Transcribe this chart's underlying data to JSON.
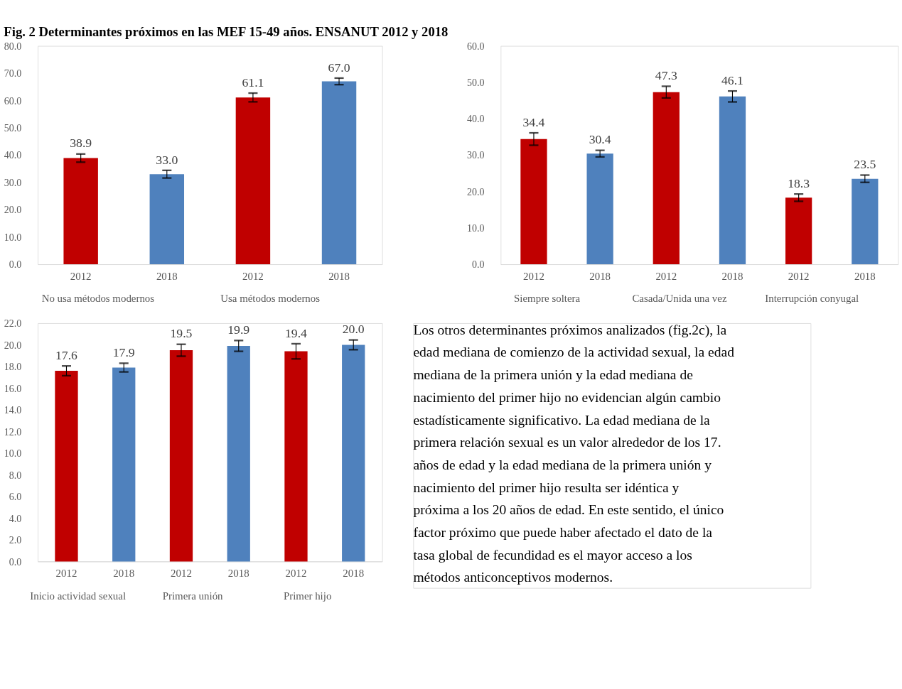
{
  "chart_data": [
    {
      "type": "bar",
      "title": "Fig. 2 Determinantes próximos en las MEF 15-49 años. ENSANUT 2012 y 2018",
      "categories": [
        "2012",
        "2018",
        "2012",
        "2018"
      ],
      "annotations": [
        "No usa métodos modernos",
        "Usa métodos modernos"
      ],
      "values": [
        38.9,
        33.0,
        61.1,
        67.0
      ],
      "value_labels": [
        "38.9",
        "33.0",
        "61.1",
        "67.0"
      ],
      "colors": [
        "#c00000",
        "#4f81bd",
        "#c00000",
        "#4f81bd"
      ],
      "errors": [
        1.5,
        1.4,
        1.6,
        1.2
      ],
      "ylim": [
        0,
        80
      ],
      "yticks": [
        {
          "value": 0,
          "label": "0.0"
        },
        {
          "value": 10,
          "label": "10.0"
        },
        {
          "value": 20,
          "label": "20.0"
        },
        {
          "value": 30,
          "label": "30.0"
        },
        {
          "value": 40,
          "label": "40.0"
        },
        {
          "value": 50,
          "label": "50.0"
        },
        {
          "value": 60,
          "label": "60.0"
        },
        {
          "value": 70,
          "label": "70.0"
        },
        {
          "value": 80,
          "label": "80.0"
        }
      ]
    },
    {
      "type": "bar",
      "categories": [
        "2012",
        "2018",
        "2012",
        "2018",
        "2012",
        "2018"
      ],
      "annotations": [
        "Siempre soltera",
        "Casada/Unida una vez",
        "Interrupción conyugal"
      ],
      "values": [
        34.4,
        30.4,
        47.3,
        46.1,
        18.3,
        23.5
      ],
      "value_labels": [
        "34.4",
        "30.4",
        "47.3",
        "46.1",
        "18.3",
        "23.5"
      ],
      "colors": [
        "#c00000",
        "#4f81bd",
        "#c00000",
        "#4f81bd",
        "#c00000",
        "#4f81bd"
      ],
      "errors": [
        1.7,
        0.9,
        1.6,
        1.5,
        1.0,
        1.0
      ],
      "ylim": [
        0,
        60
      ],
      "yticks": [
        {
          "value": 0,
          "label": "0.0"
        },
        {
          "value": 10,
          "label": "10.0"
        },
        {
          "value": 20,
          "label": "20.0"
        },
        {
          "value": 30,
          "label": "30.0"
        },
        {
          "value": 40,
          "label": "40.0"
        },
        {
          "value": 50,
          "label": "50.0"
        },
        {
          "value": 60,
          "label": "60.0"
        }
      ]
    },
    {
      "type": "bar",
      "categories": [
        "2012",
        "2018",
        "2012",
        "2018",
        "2012",
        "2018"
      ],
      "annotations": [
        "Inicio actividad sexual",
        "Primera unión",
        "Primer hijo"
      ],
      "values": [
        17.6,
        17.9,
        19.5,
        19.9,
        19.4,
        20.0
      ],
      "value_labels": [
        "17.6",
        "17.9",
        "19.5",
        "19.9",
        "19.4",
        "20.0"
      ],
      "colors": [
        "#c00000",
        "#4f81bd",
        "#c00000",
        "#4f81bd",
        "#c00000",
        "#4f81bd"
      ],
      "errors": [
        0.45,
        0.4,
        0.55,
        0.5,
        0.7,
        0.45
      ],
      "ylim": [
        0,
        22
      ],
      "yticks": [
        {
          "value": 0,
          "label": "0.0"
        },
        {
          "value": 2,
          "label": "2.0"
        },
        {
          "value": 4,
          "label": "4.0"
        },
        {
          "value": 6,
          "label": "6.0"
        },
        {
          "value": 8,
          "label": "8.0"
        },
        {
          "value": 10,
          "label": "10.0"
        },
        {
          "value": 12,
          "label": "12.0"
        },
        {
          "value": 14,
          "label": "14.0"
        },
        {
          "value": 16,
          "label": "16.0"
        },
        {
          "value": 18,
          "label": "18.0"
        },
        {
          "value": 20,
          "label": "20.0"
        },
        {
          "value": 22,
          "label": "22.0"
        }
      ]
    },
    {
      "type": "other",
      "annotations": [
        "Los otros determinantes próximos analizados (fig.2c), la edad mediana de comienzo de la actividad sexual, la edad mediana de la primera unión y la edad mediana de nacimiento del primer hijo no evidencian algún cambio estadísticamente significativo. La edad mediana de la primera relación sexual es un valor alrededor de los 17. años de edad y la edad mediana de la primera unión y nacimiento del primer hijo resulta ser idéntica y próxima a los 20 años de edad. En este sentido, el único factor próximo que puede haber afectado el dato de la tasa global de fecundidad es el mayor acceso a los métodos anticonceptivos modernos."
      ]
    }
  ]
}
